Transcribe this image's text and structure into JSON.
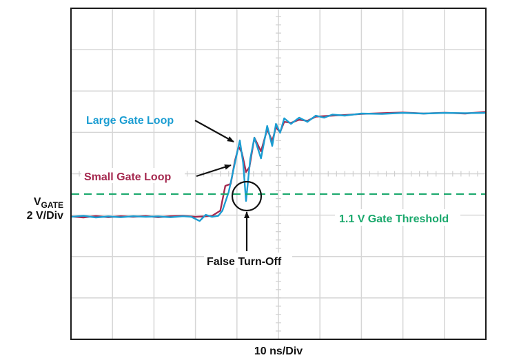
{
  "chart_data": {
    "type": "line",
    "title": "",
    "xlabel": "10 ns/Div",
    "ylabel_main": "V",
    "ylabel_sub": "GATE",
    "ylabel_scale": "2 V/Div",
    "xlim": [
      0,
      100
    ],
    "ylim": [
      -5.93,
      10.1
    ],
    "x_divisions": 10,
    "y_divisions": 8,
    "grid": true,
    "threshold": {
      "value": 1.1,
      "label": "1.1 V Gate Threshold",
      "color": "#1aa86c"
    },
    "annotations": {
      "large": "Large Gate Loop",
      "small": "Small Gate Loop",
      "false_turn_off": "False Turn-Off"
    },
    "series": [
      {
        "name": "Small Gate Loop",
        "color": "#a52a50",
        "x": [
          0,
          3,
          6,
          9,
          12,
          15,
          18,
          21,
          24,
          27,
          30,
          32,
          34,
          36,
          37.2,
          38.5,
          39.5,
          40.4,
          41.2,
          42.2,
          43,
          44.2,
          45.8,
          47.3,
          48.5,
          49.4,
          50.4,
          51.4,
          53,
          55,
          57,
          59,
          63,
          66,
          70,
          75,
          80,
          85,
          90,
          95,
          100
        ],
        "y": [
          0.02,
          -0.03,
          0.04,
          -0.02,
          0.03,
          0,
          0.04,
          -0.02,
          0.03,
          0.05,
          0,
          0.02,
          0.05,
          0.3,
          1.5,
          1.6,
          2.7,
          3.4,
          3.1,
          2.17,
          2.4,
          3.83,
          3.17,
          4.23,
          3.67,
          4.33,
          4.1,
          4.6,
          4.55,
          4.7,
          4.65,
          4.85,
          4.9,
          4.93,
          4.98,
          5.02,
          5.05,
          5.0,
          5.04,
          5.0,
          5.08
        ]
      },
      {
        "name": "Large Gate Loop",
        "color": "#1b9dd2",
        "x": [
          0,
          3,
          6,
          9,
          12,
          15,
          18,
          21,
          24,
          27,
          29,
          31,
          32.5,
          34,
          35.5,
          36.5,
          38,
          39.5,
          40.7,
          41.5,
          42.2,
          43.2,
          44.2,
          45.8,
          47.3,
          48.5,
          49.4,
          50.4,
          51.4,
          53,
          55,
          57,
          59,
          61,
          63,
          66,
          70,
          75,
          80,
          85,
          90,
          95,
          100
        ],
        "y": [
          0,
          0.05,
          -0.03,
          0.02,
          -0.02,
          0.03,
          0,
          0.02,
          -0.02,
          0.03,
          0,
          -0.2,
          0.1,
          0,
          0.05,
          0.3,
          1.2,
          2.6,
          3.7,
          2.6,
          0.77,
          2.8,
          3.83,
          2.83,
          4.4,
          3.43,
          4.5,
          4.07,
          4.77,
          4.5,
          4.8,
          4.6,
          4.9,
          4.8,
          4.95,
          4.9,
          5.0,
          4.98,
          5.03,
          5.0,
          5.03,
          5.02,
          5.03
        ]
      }
    ]
  }
}
